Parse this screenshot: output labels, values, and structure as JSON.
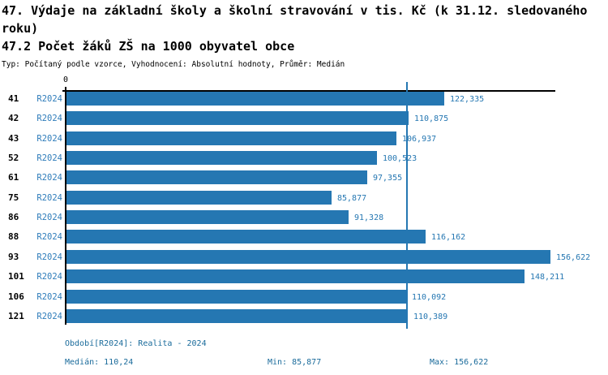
{
  "header": {
    "title": "47. Výdaje na základní školy a školní stravování v tis. Kč (k 31.12. sledovaného roku)",
    "subtitle": "47.2 Počet žáků ZŠ na 1000 obyvatel obce",
    "meta": "Typ: Počítaný podle vzorce, Vyhodnocení: Absolutní hodnoty, Průměr: Medián"
  },
  "chart_data": {
    "type": "bar",
    "orientation": "horizontal",
    "title": "47.2 Počet žáků ZŠ na 1000 obyvatel obce",
    "series_label": "R2024",
    "categories": [
      "41",
      "42",
      "43",
      "52",
      "61",
      "75",
      "86",
      "88",
      "93",
      "101",
      "106",
      "121"
    ],
    "values": [
      122.335,
      110.875,
      106.937,
      100.523,
      97.355,
      85.877,
      91.328,
      116.162,
      156.622,
      148.211,
      110.092,
      110.389
    ],
    "value_labels": [
      "122,335",
      "110,875",
      "106,937",
      "100,523",
      "97,355",
      "85,877",
      "91,328",
      "116,162",
      "156,622",
      "148,211",
      "110,092",
      "110,389"
    ],
    "x_origin_label": "0",
    "xlim": [
      0,
      158.5
    ],
    "median": 110.24,
    "median_label": "110,24",
    "min": 85.877,
    "max": 156.622,
    "grid": false,
    "legend": "none"
  },
  "footer": {
    "period": "Období[R2024]: Realita - 2024",
    "median": "Medián: 110,24",
    "min": "Min: 85,877",
    "max": "Max: 156,622"
  },
  "colors": {
    "background": "#ffffff",
    "title": "#000000",
    "axis": "#000000",
    "bar": "#2577b2",
    "median_line": "#2577b2",
    "series_label": "#2e7cba",
    "value_label": "#2577b2",
    "footer_text": "#1a6b9b"
  }
}
